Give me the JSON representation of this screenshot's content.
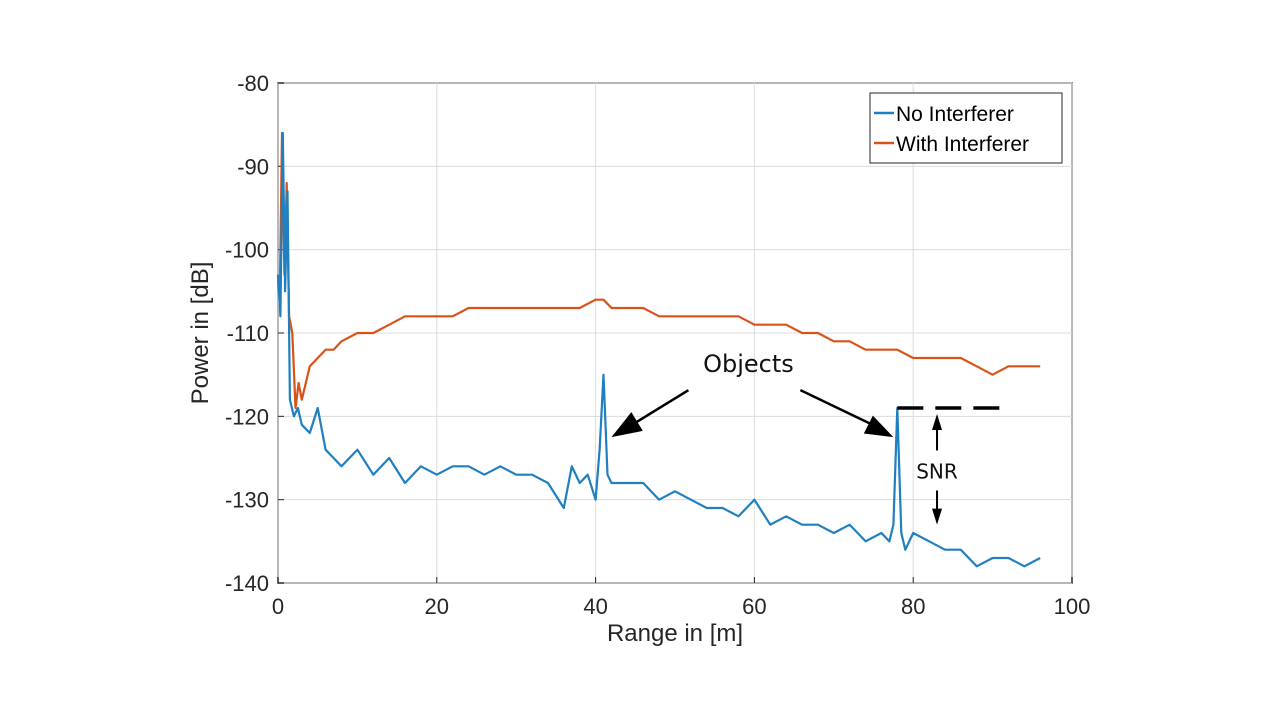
{
  "chart_data": {
    "type": "line",
    "title": "",
    "xlabel": "Range in [m]",
    "ylabel": "Power in [dB]",
    "xlim": [
      0,
      100
    ],
    "ylim": [
      -140,
      -80
    ],
    "xticks": [
      0,
      20,
      40,
      60,
      80,
      100
    ],
    "yticks": [
      -80,
      -90,
      -100,
      -110,
      -120,
      -130,
      -140
    ],
    "grid": true,
    "legend_position": "top-right",
    "series": [
      {
        "name": "No Interferer",
        "color": "#1f7fbf",
        "x": [
          0,
          0.3,
          0.6,
          0.9,
          1.2,
          1.5,
          2.0,
          2.5,
          3.0,
          4.0,
          5.0,
          6.0,
          7.0,
          8.0,
          10.0,
          12.0,
          14.0,
          16.0,
          18.0,
          20.0,
          22.0,
          24.0,
          26.0,
          28.0,
          30.0,
          32.0,
          34.0,
          36.0,
          37.0,
          38.0,
          39.0,
          40.0,
          40.5,
          41.0,
          41.5,
          42.0,
          44.0,
          46.0,
          48.0,
          50.0,
          52.0,
          54.0,
          56.0,
          58.0,
          60.0,
          62.0,
          64.0,
          66.0,
          68.0,
          70.0,
          72.0,
          74.0,
          76.0,
          77.0,
          77.5,
          78.0,
          78.5,
          79.0,
          80.0,
          82.0,
          84.0,
          86.0,
          88.0,
          90.0,
          92.0,
          94.0,
          96.0
        ],
        "y": [
          -103,
          -108,
          -86,
          -105,
          -93,
          -118,
          -120,
          -119,
          -121,
          -122,
          -119,
          -124,
          -125,
          -126,
          -124,
          -127,
          -125,
          -128,
          -126,
          -127,
          -126,
          -126,
          -127,
          -126,
          -127,
          -127,
          -128,
          -131,
          -126,
          -128,
          -127,
          -130,
          -124,
          -115,
          -127,
          -128,
          -128,
          -128,
          -130,
          -129,
          -130,
          -131,
          -131,
          -132,
          -130,
          -133,
          -132,
          -133,
          -133,
          -134,
          -133,
          -135,
          -134,
          -135,
          -133,
          -119,
          -134,
          -136,
          -134,
          -135,
          -136,
          -136,
          -138,
          -137,
          -137,
          -138,
          -137
        ]
      },
      {
        "name": "With Interferer",
        "color": "#d95319",
        "x": [
          0.2,
          0.5,
          0.8,
          1.1,
          1.4,
          1.8,
          2.2,
          2.6,
          3.0,
          3.5,
          4.0,
          5.0,
          6.0,
          7.0,
          8.0,
          10.0,
          12.0,
          14.0,
          16.0,
          18.0,
          20.0,
          22.0,
          24.0,
          26.0,
          28.0,
          30.0,
          32.0,
          34.0,
          36.0,
          38.0,
          40.0,
          41.0,
          42.0,
          44.0,
          46.0,
          48.0,
          50.0,
          52.0,
          54.0,
          56.0,
          58.0,
          60.0,
          62.0,
          64.0,
          66.0,
          68.0,
          70.0,
          72.0,
          74.0,
          76.0,
          78.0,
          80.0,
          82.0,
          84.0,
          86.0,
          88.0,
          90.0,
          92.0,
          94.0,
          96.0
        ],
        "y": [
          -107,
          -86,
          -103,
          -92,
          -108,
          -110,
          -119,
          -116,
          -118,
          -116,
          -114,
          -113,
          -112,
          -112,
          -111,
          -110,
          -110,
          -109,
          -108,
          -108,
          -108,
          -108,
          -107,
          -107,
          -107,
          -107,
          -107,
          -107,
          -107,
          -107,
          -106,
          -106,
          -107,
          -107,
          -107,
          -108,
          -108,
          -108,
          -108,
          -108,
          -108,
          -109,
          -109,
          -109,
          -110,
          -110,
          -111,
          -111,
          -112,
          -112,
          -112,
          -113,
          -113,
          -113,
          -113,
          -114,
          -115,
          -114,
          -114,
          -114
        ]
      }
    ],
    "annotations": [
      {
        "text": "Objects",
        "x": 60,
        "y": -113.5
      },
      {
        "text": "SNR",
        "x": 83,
        "y": -126.5
      }
    ]
  }
}
